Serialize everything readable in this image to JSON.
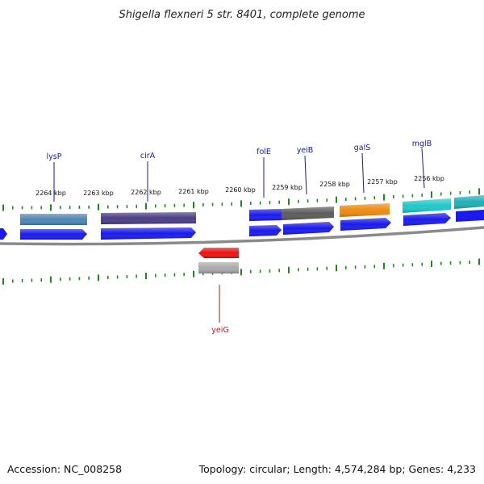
{
  "title": "Shigella flexneri 5 str. 8401, complete genome",
  "footer": {
    "accession": "Accession: NC_008258",
    "summary": "Topology: circular; Length: 4,574,284 bp; Genes: 4,233"
  },
  "colors": {
    "backbone": "#8a8a8a",
    "tick": "#1e8a1e",
    "forward_cds": "#1a1aee",
    "label_forward": "#1a1a99",
    "label_reverse": "#cc1111",
    "reverse_cds": "#ee1111"
  },
  "tick_labels": [
    "2264 kbp",
    "2263 kbp",
    "2262 kbp",
    "2261 kbp",
    "2260 kbp",
    "2259 kbp",
    "2258 kbp",
    "2257 kbp",
    "2256 kbp"
  ],
  "genes": [
    {
      "label": "lysP",
      "strand": "forward",
      "color": "#4f86b4"
    },
    {
      "label": "cirA",
      "strand": "forward",
      "color": "#4a3d86"
    },
    {
      "label": "folE",
      "strand": "forward",
      "color": "#1a1aee"
    },
    {
      "label": "yeiB",
      "strand": "forward",
      "color": "#5c5c5c"
    },
    {
      "label": "galS",
      "strand": "forward",
      "color": "#f08c10"
    },
    {
      "label": "mglB",
      "strand": "forward",
      "color": "#20c8cc"
    },
    {
      "label": "",
      "strand": "forward",
      "color": "#20b0b8"
    },
    {
      "label": "yeiG",
      "strand": "reverse",
      "color": "#aaaaaa"
    }
  ]
}
